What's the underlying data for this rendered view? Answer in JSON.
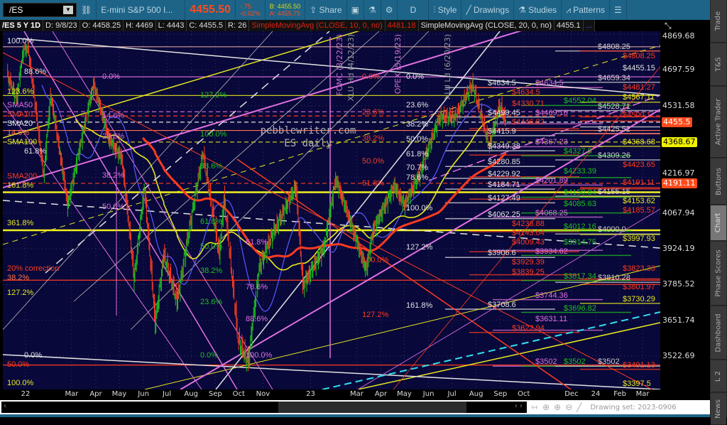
{
  "toolbar": {
    "symbol": "/ES",
    "description": "E-mini S&P 500 I...",
    "last": "4455.50",
    "change": "-.75",
    "change_pct": "-0.02%",
    "bid": "B: 4455.50",
    "ask": "A: 4455.75",
    "share": "Share",
    "aggregation": "D",
    "style": "Style",
    "drawings": "Drawings",
    "studies": "Studies",
    "patterns": "Patterns"
  },
  "infobar": {
    "period": "/ES 5 Y 1D",
    "date": "D: 9/8/23",
    "open": "O: 4458.25",
    "high": "H: 4469",
    "low": "L: 4443",
    "close": "C: 4455.5",
    "range": "R: 26",
    "sma10_label": "SimpleMovingAvg (CLOSE, 10, 0, no)",
    "sma10_value": "4481.18",
    "sma20_label": "SimpleMovingAvg (CLOSE, 20, 0, no)",
    "sma20_value": "4455.1",
    "more": "..."
  },
  "tabs": [
    "Trade",
    "T&S",
    "Active Trader",
    "Buttons",
    "Chart",
    "Phase Scores",
    "Dashboard",
    "L 2",
    "News"
  ],
  "selected_tab": "Chart",
  "bottom": {
    "drawing_set": "Drawing set: 2023-0906"
  },
  "colors": {
    "white": "#e2e2e2",
    "red": "#ff3b1f",
    "magenta": "#e070e0",
    "green": "#1fc01f",
    "yellow": "#e8e820",
    "background": "#08083a",
    "toolbar": "#1d6488"
  },
  "chart_data": {
    "type": "candlestick",
    "scale": "log",
    "ylim": [
      3397.5,
      4869.68
    ],
    "y_ticks": [
      "4869.68",
      "4697.59",
      "4531.58",
      "4216.97",
      "4067.94",
      "3924.19",
      "3785.52",
      "3651.74",
      "3522.69"
    ],
    "x_ticks": [
      [
        "22",
        "2022-01-01"
      ],
      [
        "Mar",
        "2022-03-01"
      ],
      [
        "Apr",
        "2022-04-01"
      ],
      [
        "May",
        "2022-05-01"
      ],
      [
        "Jun",
        "2022-06-01"
      ],
      [
        "Jul",
        "2022-07-01"
      ],
      [
        "Aug",
        "2022-08-01"
      ],
      [
        "Sep",
        "2022-09-01"
      ],
      [
        "Oct",
        "2022-10-01"
      ],
      [
        "Nov",
        "2022-11-01"
      ],
      [
        "23",
        "2023-01-01"
      ],
      [
        "Mar",
        "2023-03-01"
      ],
      [
        "Apr",
        "2023-04-01"
      ],
      [
        "May",
        "2023-05-01"
      ],
      [
        "Jun",
        "2023-06-01"
      ],
      [
        "Jul",
        "2023-07-01"
      ],
      [
        "Aug",
        "2023-08-01"
      ],
      [
        "Sep",
        "2023-09-01"
      ],
      [
        "Oct",
        "2023-10-01"
      ],
      [
        "Dec",
        "2023-12-01"
      ],
      [
        "24",
        "2024-01-01"
      ],
      [
        "Feb",
        "2024-02-01"
      ],
      [
        "Mar",
        "2024-03-01"
      ]
    ],
    "price_markers": [
      {
        "value": "4455.5",
        "color": "#ff4a1c"
      },
      {
        "value": "4368.67",
        "color": "#f0f000"
      },
      {
        "value": "4191.11",
        "color": "#ff4a1c"
      }
    ],
    "close_series": [
      [
        "2021-12-08",
        4680
      ],
      [
        "2021-12-20",
        4560
      ],
      [
        "2021-12-29",
        4790
      ],
      [
        "2022-01-04",
        4800
      ],
      [
        "2022-01-24",
        4220
      ],
      [
        "2022-02-02",
        4580
      ],
      [
        "2022-02-24",
        4100
      ],
      [
        "2022-03-29",
        4630
      ],
      [
        "2022-04-18",
        4380
      ],
      [
        "2022-05-04",
        4300
      ],
      [
        "2022-05-20",
        3810
      ],
      [
        "2022-06-02",
        4170
      ],
      [
        "2022-06-16",
        3640
      ],
      [
        "2022-06-27",
        3900
      ],
      [
        "2022-07-14",
        3720
      ],
      [
        "2022-08-16",
        4320
      ],
      [
        "2022-09-06",
        3900
      ],
      [
        "2022-09-12",
        4130
      ],
      [
        "2022-09-30",
        3580
      ],
      [
        "2022-10-13",
        3500
      ],
      [
        "2022-10-27",
        3850
      ],
      [
        "2022-11-10",
        3960
      ],
      [
        "2022-12-01",
        4100
      ],
      [
        "2022-12-13",
        4180
      ],
      [
        "2022-12-22",
        3780
      ],
      [
        "2023-01-18",
        3930
      ],
      [
        "2023-02-02",
        4210
      ],
      [
        "2023-03-13",
        3840
      ],
      [
        "2023-03-22",
        4000
      ],
      [
        "2023-04-18",
        4180
      ],
      [
        "2023-05-01",
        4100
      ],
      [
        "2023-05-19",
        4220
      ],
      [
        "2023-06-15",
        4480
      ],
      [
        "2023-07-05",
        4480
      ],
      [
        "2023-07-27",
        4630
      ],
      [
        "2023-08-18",
        4350
      ],
      [
        "2023-08-31",
        4540
      ],
      [
        "2023-09-08",
        4455.5
      ]
    ],
    "moving_averages": [
      {
        "name": "SMA50",
        "color": "#5a5aff"
      },
      {
        "name": "SMA100",
        "color": "#e8e820"
      },
      {
        "name": "SMA200",
        "color": "#ff3b1f"
      }
    ],
    "level_labels": [
      {
        "group": "white",
        "color": "#e2e2e2",
        "items": [
          "4634.5",
          "4499.45",
          "4415.9",
          "4349.38",
          "4280.85",
          "4229.92",
          "4184.71",
          "4127.49",
          "4062.25",
          "3906.6",
          "3708.6"
        ]
      },
      {
        "group": "red",
        "color": "#ff3b1f",
        "items": [
          "4634.5",
          "4446.82",
          "4330.71",
          "4236.88",
          "4143.04",
          "4009.43",
          "3929.39",
          "3839.25",
          "3622.94"
        ]
      },
      {
        "group": "magenta",
        "color": "#e070e0",
        "items": [
          "4634.5",
          "4469.16",
          "4367.23",
          "4201.89",
          "4068.25",
          "3934.62",
          "3744.36",
          "3631.11",
          "3502"
        ]
      },
      {
        "group": "green",
        "color": "#1fc01f",
        "items": [
          "4552.04",
          "4327.5",
          "4233.39",
          "4150.84",
          "4085.63",
          "4012.16",
          "3914.75",
          "3817.34",
          "3696.82",
          "3502"
        ]
      },
      {
        "group": "gray",
        "color": "#d0d0d0",
        "items": [
          "4808.25",
          "4659.34",
          "4528.71",
          "4425.52",
          "4309.26",
          "4155.15",
          "4000.0",
          "3810.28",
          "3502"
        ]
      },
      {
        "group": "right-yellow",
        "color": "#e8e820",
        "items": [
          "4567.11",
          "4368.68",
          "4153.62",
          "3997.93",
          "3730.29",
          "3397.5"
        ]
      },
      {
        "group": "right-red",
        "color": "#ff3b1f",
        "items": [
          "4808.25",
          "4500.1",
          "4481.27",
          "4423.65",
          "4191.11",
          "4185.57",
          "3823.33",
          "3801.97",
          "3491.13"
        ]
      },
      {
        "group": "right-white",
        "color": "#e2e2e2",
        "items": [
          "4455.15"
        ]
      }
    ],
    "fib_labels": [
      {
        "group": "left",
        "text": "100.0%",
        "price": 4835,
        "color": "#e2e2e2"
      },
      {
        "group": "left2",
        "text": "88.6%",
        "price": 4689,
        "color": "#e2e2e2"
      },
      {
        "group": "left",
        "text": "123.6%",
        "price": 4596,
        "color": "#e8e820"
      },
      {
        "group": "left",
        "text": "SMA50",
        "price": 4534,
        "color": "#e070e0"
      },
      {
        "group": "left",
        "text": "SMA10",
        "price": 4504,
        "color": "#ff3b1f"
      },
      {
        "group": "left",
        "text": "SMA20",
        "price": 4485,
        "color": "#e2e2e2"
      },
      {
        "group": "left",
        "text": "14.6%",
        "price": 4457,
        "color": "#ff7050"
      },
      {
        "group": "left",
        "text": "SMA100",
        "price": 4393,
        "color": "#e8e820"
      },
      {
        "group": "left2",
        "text": "61.8%",
        "price": 4334,
        "color": "#e2e2e2"
      },
      {
        "group": "left",
        "text": "SMA200",
        "price": 4220,
        "color": "#ff3b1f"
      },
      {
        "group": "left",
        "text": "161.8%",
        "price": 4182,
        "color": "#e8e820"
      },
      {
        "group": "left",
        "text": "361.8%",
        "price": 4026,
        "color": "#e8e820"
      },
      {
        "group": "left",
        "text": "20% correction",
        "price": 3847,
        "color": "#ff3b1f"
      },
      {
        "group": "left",
        "text": "38.2%",
        "price": 3828,
        "color": "#ff7050"
      },
      {
        "group": "left",
        "text": "127.2%",
        "price": 3753,
        "color": "#e8e820"
      },
      {
        "group": "left2",
        "text": "0.0%",
        "price": 3526,
        "color": "#e2e2e2"
      },
      {
        "group": "left",
        "text": "50.0%",
        "price": 3508,
        "color": "#ff3b1f"
      },
      {
        "group": "left",
        "text": "100.0%",
        "price": 3425,
        "color": "#e8e820"
      },
      {
        "group": "mid",
        "text": "0.0%",
        "price": 4665,
        "color": "#e070e0"
      },
      {
        "group": "mid",
        "text": "14.6%",
        "price": 4485,
        "color": "#e070e0"
      },
      {
        "group": "mid",
        "text": "23.6%",
        "price": 4393,
        "color": "#e070e0"
      },
      {
        "group": "mid",
        "text": "38.2%",
        "price": 4224,
        "color": "#e070e0"
      },
      {
        "group": "mid",
        "text": "50.0%",
        "price": 4094,
        "color": "#e070e0"
      },
      {
        "group": "mid2",
        "text": "127.2%",
        "price": 4578,
        "color": "#1fc01f"
      },
      {
        "group": "mid2",
        "text": "100.0%",
        "price": 4404,
        "color": "#1fc01f"
      },
      {
        "group": "mid2",
        "text": "88.6%",
        "price": 4264,
        "color": "#1fc01f"
      },
      {
        "group": "mid2",
        "text": "61.8%",
        "price": 4033,
        "color": "#1fc01f"
      },
      {
        "group": "mid2",
        "text": "50.0%",
        "price": 3932,
        "color": "#1fc01f"
      },
      {
        "group": "mid2",
        "text": "38.2%",
        "price": 3838,
        "color": "#1fc01f"
      },
      {
        "group": "mid2",
        "text": "23.6%",
        "price": 3720,
        "color": "#1fc01f"
      },
      {
        "group": "mid2",
        "text": "0.0%",
        "price": 3526,
        "color": "#1fc01f"
      },
      {
        "group": "mid3",
        "text": "61.8%",
        "price": 3950,
        "color": "#e070e0"
      },
      {
        "group": "mid3",
        "text": "78.6%",
        "price": 3775,
        "color": "#e070e0"
      },
      {
        "group": "mid3",
        "text": "88.6%",
        "price": 3655,
        "color": "#e070e0"
      },
      {
        "group": "mid3",
        "text": "100.0%",
        "price": 3526,
        "color": "#e070e0"
      },
      {
        "group": "redfib",
        "text": "0.0%",
        "price": 4665,
        "color": "#ff3b1f"
      },
      {
        "group": "redfib",
        "text": "23.6%",
        "price": 4501,
        "color": "#ff3b1f"
      },
      {
        "group": "redfib",
        "text": "38.2%",
        "price": 4384,
        "color": "#ff3b1f"
      },
      {
        "group": "redfib",
        "text": "50.0%",
        "price": 4286,
        "color": "#ff3b1f"
      },
      {
        "group": "redfib",
        "text": "61.8%",
        "price": 4191,
        "color": "#ff3b1f"
      },
      {
        "group": "redfib",
        "text": "100.0%",
        "price": 3880,
        "color": "#ff3b1f"
      },
      {
        "group": "redfib",
        "text": "127.2%",
        "price": 3672,
        "color": "#ff3b1f"
      },
      {
        "group": "whitefib",
        "text": "0.0%",
        "price": 4665,
        "color": "#e2e2e2"
      },
      {
        "group": "whitefib",
        "text": "23.6%",
        "price": 4533,
        "color": "#e2e2e2"
      },
      {
        "group": "whitefib",
        "text": "38.2%",
        "price": 4447,
        "color": "#e2e2e2"
      },
      {
        "group": "whitefib",
        "text": "50.0%",
        "price": 4380,
        "color": "#e2e2e2"
      },
      {
        "group": "whitefib",
        "text": "61.8%",
        "price": 4315,
        "color": "#e2e2e2"
      },
      {
        "group": "whitefib",
        "text": "70.7%",
        "price": 4257,
        "color": "#e2e2e2"
      },
      {
        "group": "whitefib",
        "text": "78.6%",
        "price": 4214,
        "color": "#e2e2e2"
      },
      {
        "group": "whitefib",
        "text": "100.0%",
        "price": 4088,
        "color": "#e2e2e2"
      },
      {
        "group": "whitefib",
        "text": "127.2%",
        "price": 3930,
        "color": "#e2e2e2"
      },
      {
        "group": "whitefib",
        "text": "161.8%",
        "price": 3707,
        "color": "#e2e2e2"
      }
    ],
    "rules": [
      {
        "price": 4808,
        "color": "#d8a0a0",
        "dash": false
      },
      {
        "price": 4665,
        "color": "#e070e0",
        "dash": false
      },
      {
        "price": 4578,
        "color": "#c8c820",
        "dash": false
      },
      {
        "price": 4504,
        "color": "#e070e0",
        "dash": true
      },
      {
        "price": 4485,
        "color": "#ff3b1f",
        "dash": true
      },
      {
        "price": 4457,
        "color": "#e2e2e2",
        "dash": true
      },
      {
        "price": 4420,
        "color": "#ff7050",
        "dash": false
      },
      {
        "price": 4368.68,
        "color": "#c8c820",
        "dash": true
      },
      {
        "price": 4191.11,
        "color": "#ff3b1f",
        "dash": true
      },
      {
        "price": 4153.62,
        "color": "#f0f020",
        "dash": false,
        "thick": true
      },
      {
        "price": 3997.93,
        "color": "#f0f020",
        "dash": false,
        "thick": true
      },
      {
        "price": 3801.97,
        "color": "#ff3b1f",
        "dash": false
      },
      {
        "price": 3491.13,
        "color": "#ff3b1f",
        "dash": false
      }
    ],
    "annotations": {
      "watermark": "pebblewriter.com",
      "subtitle": "ES daily",
      "events": [
        "FOMC (3/22/23)",
        "XLU Hd (4/12/23)",
        "OPEX (5/19/23)",
        "XLU Ld (6/20/23)"
      ]
    }
  }
}
